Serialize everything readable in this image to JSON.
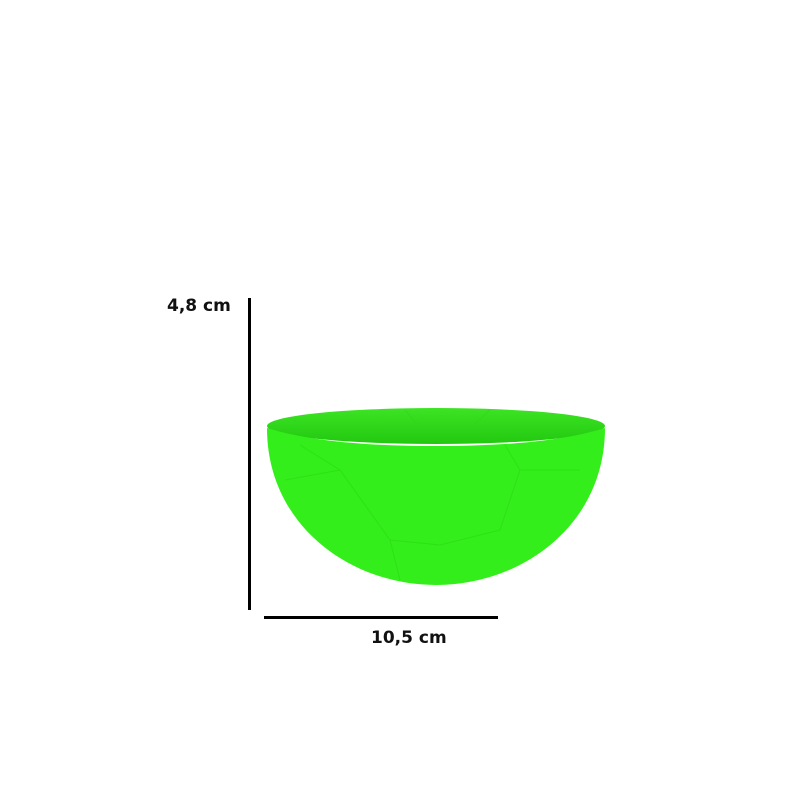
{
  "product": {
    "color": "#33ee1a",
    "rim_color": "#2bd816"
  },
  "dimensions": {
    "height_label": "4,8 cm",
    "width_label": "10,5 cm"
  }
}
